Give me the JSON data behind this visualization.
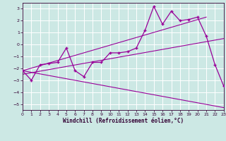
{
  "xlabel": "Windchill (Refroidissement éolien,°C)",
  "background_color": "#cce8e4",
  "line_color": "#990099",
  "xlim": [
    0,
    23
  ],
  "ylim": [
    -5.5,
    3.5
  ],
  "yticks": [
    -5,
    -4,
    -3,
    -2,
    -1,
    0,
    1,
    2,
    3
  ],
  "xticks": [
    0,
    1,
    2,
    3,
    4,
    5,
    6,
    7,
    8,
    9,
    10,
    11,
    12,
    13,
    14,
    15,
    16,
    17,
    18,
    19,
    20,
    21,
    22,
    23
  ],
  "series1_x": [
    0,
    1,
    2,
    3,
    4,
    5,
    6,
    7,
    8,
    9,
    10,
    11,
    12,
    13,
    14,
    15,
    16,
    17,
    18,
    19,
    20,
    21,
    22,
    23
  ],
  "series1_y": [
    -2.2,
    -3.0,
    -1.7,
    -1.6,
    -1.5,
    -0.3,
    -2.2,
    -2.7,
    -1.5,
    -1.5,
    -0.7,
    -0.7,
    -0.6,
    -0.3,
    1.2,
    3.2,
    1.7,
    2.8,
    2.0,
    2.1,
    2.3,
    0.7,
    -1.7,
    -3.5
  ],
  "regline1_x": [
    0,
    21
  ],
  "regline1_y": [
    -2.2,
    2.3
  ],
  "regline2_x": [
    0,
    23
  ],
  "regline2_y": [
    -2.2,
    -5.3
  ],
  "regline3_x": [
    0,
    23
  ],
  "regline3_y": [
    -2.5,
    0.5
  ]
}
